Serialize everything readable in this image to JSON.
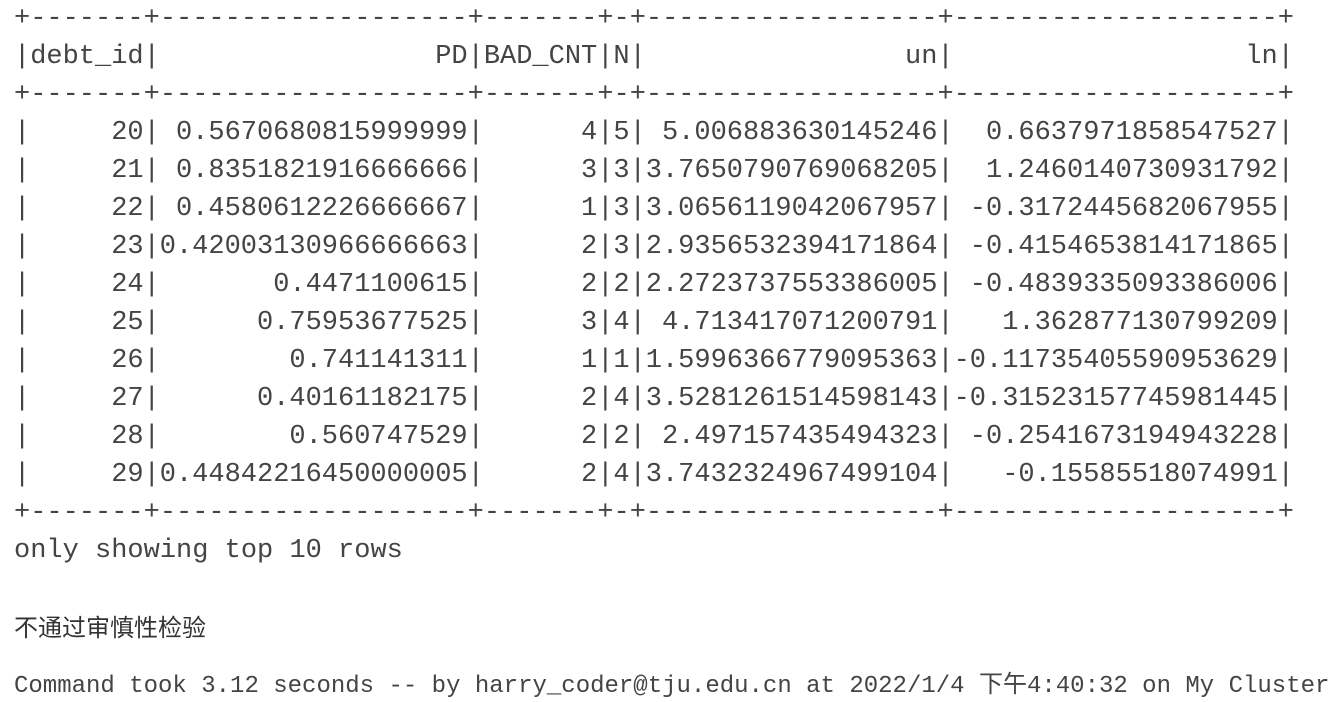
{
  "table": {
    "border": "+-------+-------------------+-------+-+------------------+--------------------+",
    "separator": "|",
    "columns": [
      "debt_id",
      "PD",
      "BAD_CNT",
      "N",
      "un",
      "ln"
    ],
    "rows": [
      [
        "20",
        "0.5670680815999999",
        "4",
        "5",
        "5.006883630145246",
        "0.6637971858547527"
      ],
      [
        "21",
        "0.8351821916666666",
        "3",
        "3",
        "3.7650790769068205",
        "1.2460140730931792"
      ],
      [
        "22",
        "0.4580612226666667",
        "1",
        "3",
        "3.0656119042067957",
        "-0.3172445682067955"
      ],
      [
        "23",
        "0.42003130966666663",
        "2",
        "3",
        "2.9356532394171864",
        "-0.4154653814171865"
      ],
      [
        "24",
        "0.4471100615",
        "2",
        "2",
        "2.2723737553386005",
        "-0.4839335093386006"
      ],
      [
        "25",
        "0.75953677525",
        "3",
        "4",
        "4.713417071200791",
        "1.362877130799209"
      ],
      [
        "26",
        "0.741141311",
        "1",
        "1",
        "1.5996366779095363",
        "-0.11735405590953629"
      ],
      [
        "27",
        "0.40161182175",
        "2",
        "4",
        "3.5281261514598143",
        "-0.31523157745981445"
      ],
      [
        "28",
        "0.560747529",
        "2",
        "2",
        "2.497157435494323",
        "-0.2541673194943228"
      ],
      [
        "29",
        "0.44842216450000005",
        "2",
        "4",
        "3.7432324967499104",
        "-0.15585518074991"
      ]
    ],
    "footer": "only showing top 10 rows"
  },
  "message": "不通过审慎性检验",
  "command": "Command took 3.12 seconds -- by harry_coder@tju.edu.cn at 2022/1/4 下午4:40:32 on My Cluster"
}
